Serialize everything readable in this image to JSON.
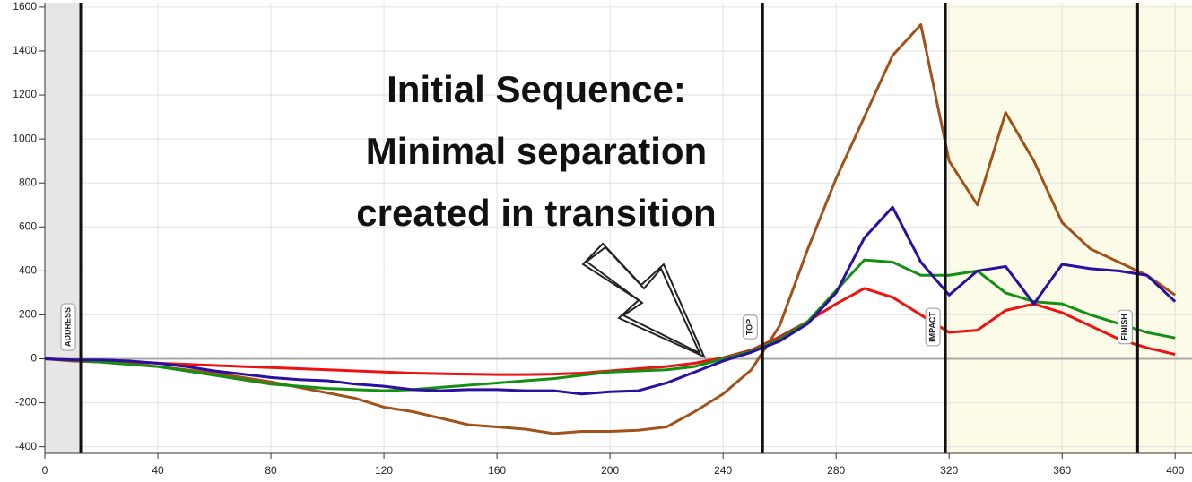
{
  "chart_data": {
    "type": "line",
    "x": [
      0,
      10,
      20,
      30,
      40,
      50,
      60,
      70,
      80,
      90,
      100,
      110,
      120,
      130,
      140,
      150,
      160,
      170,
      180,
      190,
      200,
      210,
      220,
      230,
      240,
      250,
      260,
      270,
      280,
      290,
      300,
      310,
      320,
      330,
      340,
      350,
      360,
      370,
      380,
      390,
      400
    ],
    "series": [
      {
        "color": "#a0521b",
        "values": [
          0,
          -10,
          -15,
          -25,
          -35,
          -50,
          -65,
          -85,
          -105,
          -130,
          -155,
          -180,
          -220,
          -240,
          -270,
          -300,
          -310,
          -320,
          -340,
          -330,
          -330,
          -325,
          -310,
          -240,
          -160,
          -50,
          150,
          500,
          820,
          1100,
          1380,
          1520,
          900,
          700,
          1120,
          900,
          620,
          500,
          440,
          380,
          290
        ]
      },
      {
        "color": "#ee1111",
        "values": [
          0,
          -5,
          -10,
          -15,
          -20,
          -25,
          -30,
          -35,
          -40,
          -45,
          -50,
          -55,
          -60,
          -65,
          -68,
          -70,
          -72,
          -72,
          -70,
          -65,
          -55,
          -45,
          -35,
          -20,
          5,
          40,
          100,
          170,
          250,
          320,
          280,
          200,
          120,
          130,
          220,
          250,
          210,
          150,
          90,
          50,
          20
        ]
      },
      {
        "color": "#139013",
        "values": [
          0,
          -5,
          -15,
          -25,
          -35,
          -55,
          -75,
          -95,
          -115,
          -125,
          -135,
          -140,
          -145,
          -140,
          -130,
          -120,
          -110,
          -100,
          -90,
          -75,
          -60,
          -55,
          -50,
          -35,
          0,
          35,
          90,
          170,
          310,
          450,
          440,
          380,
          380,
          400,
          300,
          260,
          250,
          200,
          160,
          120,
          95
        ]
      },
      {
        "color": "#2a0fa0",
        "values": [
          0,
          -5,
          -5,
          -10,
          -20,
          -35,
          -55,
          -70,
          -85,
          -95,
          -100,
          -115,
          -125,
          -140,
          -145,
          -140,
          -140,
          -145,
          -145,
          -160,
          -150,
          -145,
          -110,
          -60,
          -10,
          30,
          80,
          160,
          300,
          550,
          690,
          440,
          290,
          400,
          420,
          250,
          430,
          410,
          400,
          380,
          260
        ]
      }
    ],
    "xlim": [
      0,
      405
    ],
    "ylim": [
      -430,
      1620
    ],
    "xticks": [
      0,
      40,
      80,
      120,
      160,
      200,
      240,
      280,
      320,
      360,
      400
    ],
    "yticks": [
      -400,
      -200,
      0,
      200,
      400,
      600,
      800,
      1000,
      1200,
      1400,
      1600
    ],
    "grid": true,
    "events": [
      {
        "x": 12.7,
        "label": "ADDRESS"
      },
      {
        "x": 254,
        "label": "TOP"
      },
      {
        "x": 318.7,
        "label": "IMPACT"
      },
      {
        "x": 386.7,
        "label": "FINISH"
      }
    ],
    "annotation": [
      "Initial Sequence:",
      "Minimal separation",
      "created in transition"
    ]
  }
}
